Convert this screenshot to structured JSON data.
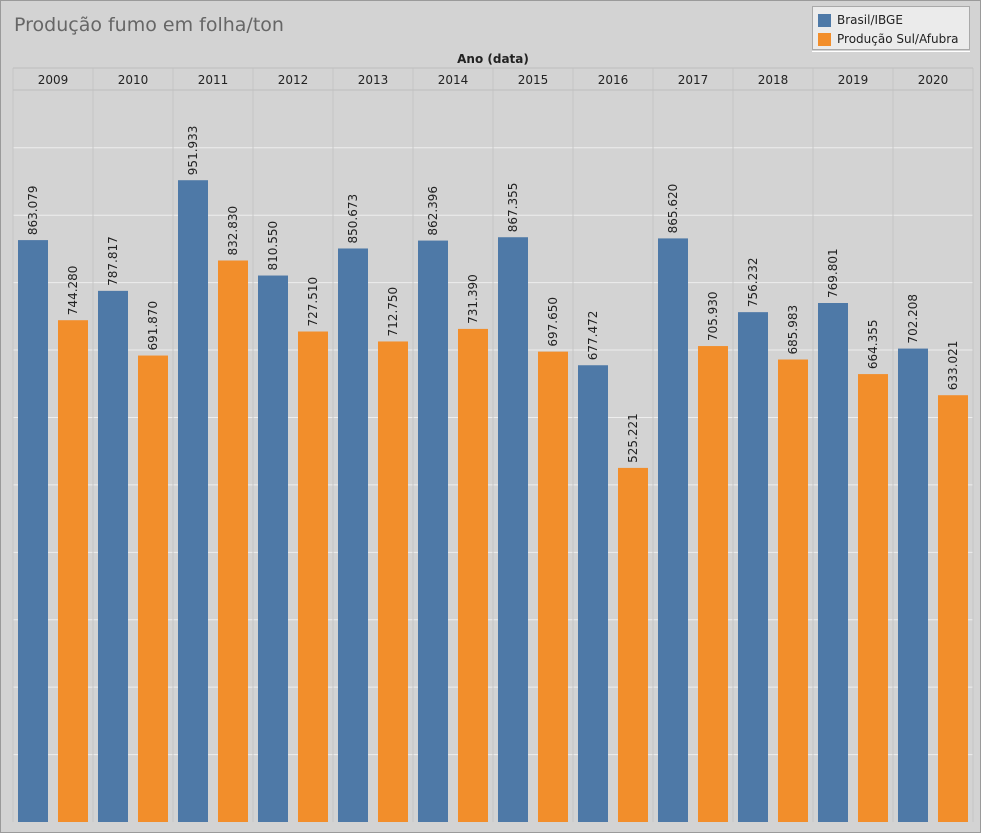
{
  "title": "Produção fumo em folha/ton",
  "legend": {
    "items": [
      {
        "label": "Brasil/IBGE",
        "color": "#4e79a7"
      },
      {
        "label": "Produção Sul/Afubra",
        "color": "#f28e2b"
      }
    ]
  },
  "chart_data": {
    "type": "bar",
    "title": "Produção fumo em folha/ton",
    "xlabel": "Ano (data)",
    "ylabel": "",
    "ylim": [
      0,
      1000
    ],
    "grid": true,
    "legend_position": "top-right",
    "categories": [
      "2009",
      "2010",
      "2011",
      "2012",
      "2013",
      "2014",
      "2015",
      "2016",
      "2017",
      "2018",
      "2019",
      "2020"
    ],
    "series": [
      {
        "name": "Brasil/IBGE",
        "color": "#4e79a7",
        "values": [
          863.079,
          787.817,
          951.933,
          810.55,
          850.673,
          862.396,
          867.355,
          677.472,
          865.62,
          756.232,
          769.801,
          702.208
        ],
        "labels": [
          "863.079",
          "787.817",
          "951.933",
          "810.550",
          "850.673",
          "862.396",
          "867.355",
          "677.472",
          "865.620",
          "756.232",
          "769.801",
          "702.208"
        ]
      },
      {
        "name": "Produção Sul/Afubra",
        "color": "#f28e2b",
        "values": [
          744.28,
          691.87,
          832.83,
          727.51,
          712.75,
          731.39,
          697.65,
          525.221,
          705.93,
          685.983,
          664.355,
          633.021
        ],
        "labels": [
          "744.280",
          "691.870",
          "832.830",
          "727.510",
          "712.750",
          "731.390",
          "697.650",
          "525.221",
          "705.930",
          "685.983",
          "664.355",
          "633.021"
        ]
      }
    ]
  }
}
